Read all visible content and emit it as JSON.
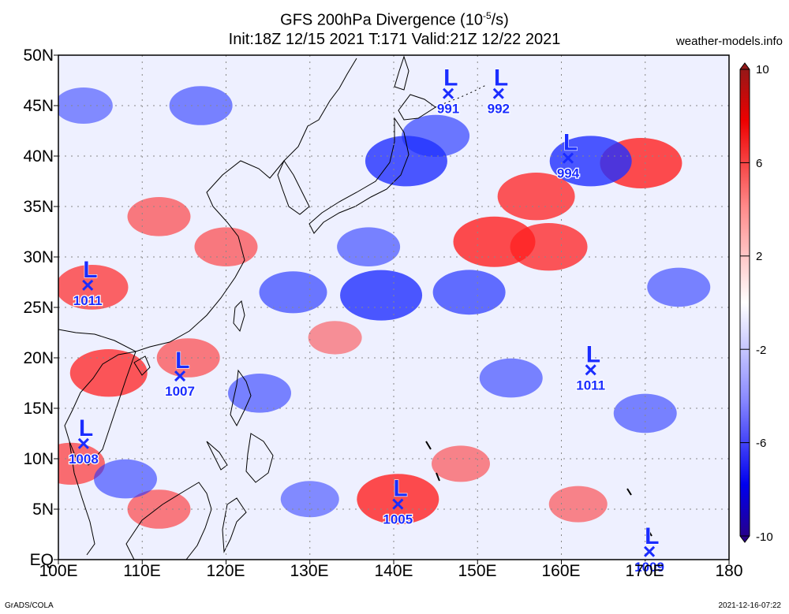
{
  "header": {
    "title_line1": "GFS 200hPa Divergence (10",
    "title_exp": "-5",
    "title_line1_end": "/s)",
    "title_line2": "Init:18Z 12/15 2021  T:171  Valid:21Z 12/22 2021",
    "site": "weather-models.info"
  },
  "axes": {
    "y_labels": [
      "50N",
      "45N",
      "40N",
      "35N",
      "30N",
      "25N",
      "20N",
      "15N",
      "10N",
      "5N",
      "EQ"
    ],
    "x_labels": [
      "100E",
      "110E",
      "120E",
      "130E",
      "140E",
      "150E",
      "160E",
      "170E",
      "180"
    ],
    "lat_range": [
      0,
      50
    ],
    "lon_range": [
      100,
      180
    ]
  },
  "colorbar": {
    "labels": [
      "10",
      "6",
      "2",
      "-2",
      "-6",
      "-10"
    ],
    "values": [
      10,
      6,
      2,
      -2,
      -6,
      -10
    ],
    "colors_top_to_bottom": [
      "#8b1a1a",
      "#ff0000",
      "#ff9a9a",
      "#ffffff",
      "#9a9aff",
      "#0000ff",
      "#2a0080"
    ]
  },
  "lows": [
    {
      "label": "L",
      "pressure": "1011",
      "lon": 103.5,
      "lat": 27.2
    },
    {
      "label": "L",
      "pressure": "1007",
      "lon": 114.5,
      "lat": 18.2
    },
    {
      "label": "L",
      "pressure": "1008",
      "lon": 103.0,
      "lat": 11.5
    },
    {
      "label": "L",
      "pressure": "991",
      "lon": 146.5,
      "lat": 46.2
    },
    {
      "label": "L",
      "pressure": "992",
      "lon": 152.5,
      "lat": 46.2
    },
    {
      "label": "L",
      "pressure": "994",
      "lon": 160.8,
      "lat": 39.8
    },
    {
      "label": "L",
      "pressure": "1011",
      "lon": 163.5,
      "lat": 18.8
    },
    {
      "label": "L",
      "pressure": "1005",
      "lon": 140.5,
      "lat": 5.5
    },
    {
      "label": "L",
      "pressure": "1009",
      "lon": 170.5,
      "lat": 0.8
    }
  ],
  "field_features": [
    {
      "sign": "pos",
      "lon": 157.0,
      "lat": 36.0,
      "strength": 0.9
    },
    {
      "sign": "pos",
      "lon": 152.0,
      "lat": 31.5,
      "strength": 1.0
    },
    {
      "sign": "pos",
      "lon": 158.5,
      "lat": 31.0,
      "strength": 0.9
    },
    {
      "sign": "pos",
      "lon": 169.5,
      "lat": 39.3,
      "strength": 1.0
    },
    {
      "sign": "pos",
      "lon": 106.0,
      "lat": 18.5,
      "strength": 0.9
    },
    {
      "sign": "pos",
      "lon": 104.0,
      "lat": 27.0,
      "strength": 0.8
    },
    {
      "sign": "pos",
      "lon": 112.0,
      "lat": 34.0,
      "strength": 0.6
    },
    {
      "sign": "pos",
      "lon": 120.0,
      "lat": 31.0,
      "strength": 0.6
    },
    {
      "sign": "pos",
      "lon": 140.5,
      "lat": 6.0,
      "strength": 1.0
    },
    {
      "sign": "pos",
      "lon": 101.5,
      "lat": 9.5,
      "strength": 0.7
    },
    {
      "sign": "pos",
      "lon": 115.5,
      "lat": 20.0,
      "strength": 0.6
    },
    {
      "sign": "pos",
      "lon": 162.0,
      "lat": 5.5,
      "strength": 0.5
    },
    {
      "sign": "pos",
      "lon": 112.0,
      "lat": 5.0,
      "strength": 0.6
    },
    {
      "sign": "pos",
      "lon": 133.0,
      "lat": 22.0,
      "strength": 0.4
    },
    {
      "sign": "pos",
      "lon": 148.0,
      "lat": 9.5,
      "strength": 0.5
    },
    {
      "sign": "neg",
      "lon": 141.5,
      "lat": 39.5,
      "strength": 1.0
    },
    {
      "sign": "neg",
      "lon": 138.5,
      "lat": 26.2,
      "strength": 1.0
    },
    {
      "sign": "neg",
      "lon": 149.0,
      "lat": 26.5,
      "strength": 0.8
    },
    {
      "sign": "neg",
      "lon": 128.0,
      "lat": 26.5,
      "strength": 0.7
    },
    {
      "sign": "neg",
      "lon": 163.5,
      "lat": 39.5,
      "strength": 1.0
    },
    {
      "sign": "neg",
      "lon": 145.0,
      "lat": 42.0,
      "strength": 0.7
    },
    {
      "sign": "neg",
      "lon": 137.0,
      "lat": 31.0,
      "strength": 0.6
    },
    {
      "sign": "neg",
      "lon": 124.0,
      "lat": 16.5,
      "strength": 0.6
    },
    {
      "sign": "neg",
      "lon": 154.0,
      "lat": 18.0,
      "strength": 0.6
    },
    {
      "sign": "neg",
      "lon": 170.0,
      "lat": 14.5,
      "strength": 0.6
    },
    {
      "sign": "neg",
      "lon": 108.0,
      "lat": 8.0,
      "strength": 0.6
    },
    {
      "sign": "neg",
      "lon": 130.0,
      "lat": 6.0,
      "strength": 0.5
    },
    {
      "sign": "neg",
      "lon": 117.0,
      "lat": 45.0,
      "strength": 0.6
    },
    {
      "sign": "neg",
      "lon": 103.0,
      "lat": 45.0,
      "strength": 0.5
    },
    {
      "sign": "neg",
      "lon": 174.0,
      "lat": 27.0,
      "strength": 0.6
    }
  ],
  "footer": {
    "left": "GrADS/COLA",
    "right": "2021-12-16-07:22"
  }
}
